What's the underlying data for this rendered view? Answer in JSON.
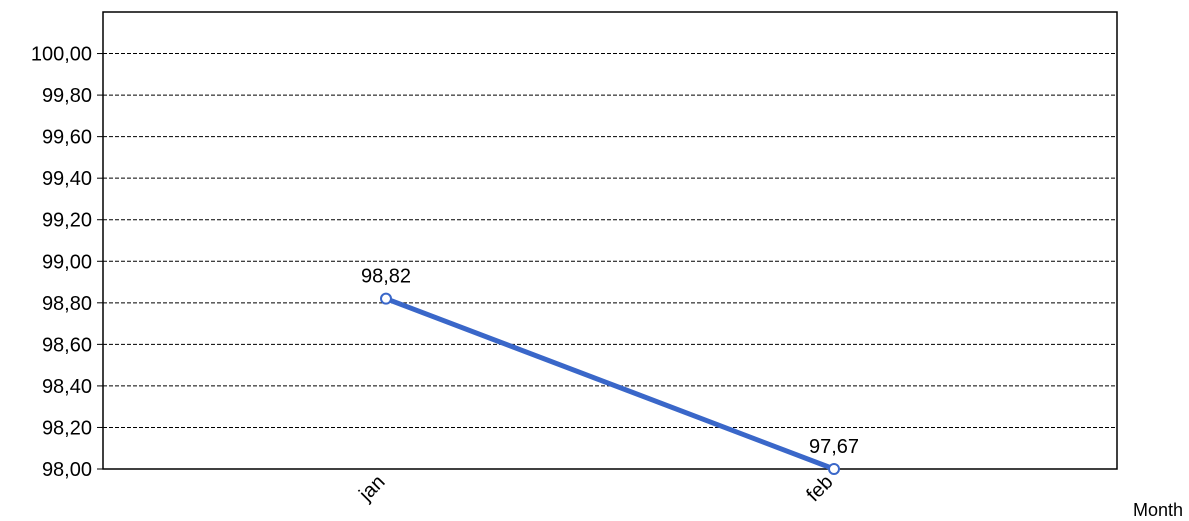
{
  "chart_data": {
    "type": "line",
    "categories": [
      "jan",
      "feb"
    ],
    "series": [
      {
        "values": [
          98.82,
          97.67
        ],
        "color": "#3A67C9"
      }
    ],
    "data_labels": [
      "98,82",
      "97,67"
    ],
    "ylim": [
      98.0,
      100.2
    ],
    "y_ticks": [
      98.0,
      98.2,
      98.4,
      98.6,
      98.8,
      99.0,
      99.2,
      99.4,
      99.6,
      99.8,
      100.0
    ],
    "y_tick_labels": [
      "98,00",
      "98,20",
      "98,40",
      "98,60",
      "98,80",
      "99,00",
      "99,20",
      "99,40",
      "99,60",
      "99,80",
      "100,00"
    ],
    "xlabel": "Month",
    "ylabel": "",
    "title": "",
    "grid": "horizontal dashed",
    "x_tick_rotation": "diagonal"
  }
}
